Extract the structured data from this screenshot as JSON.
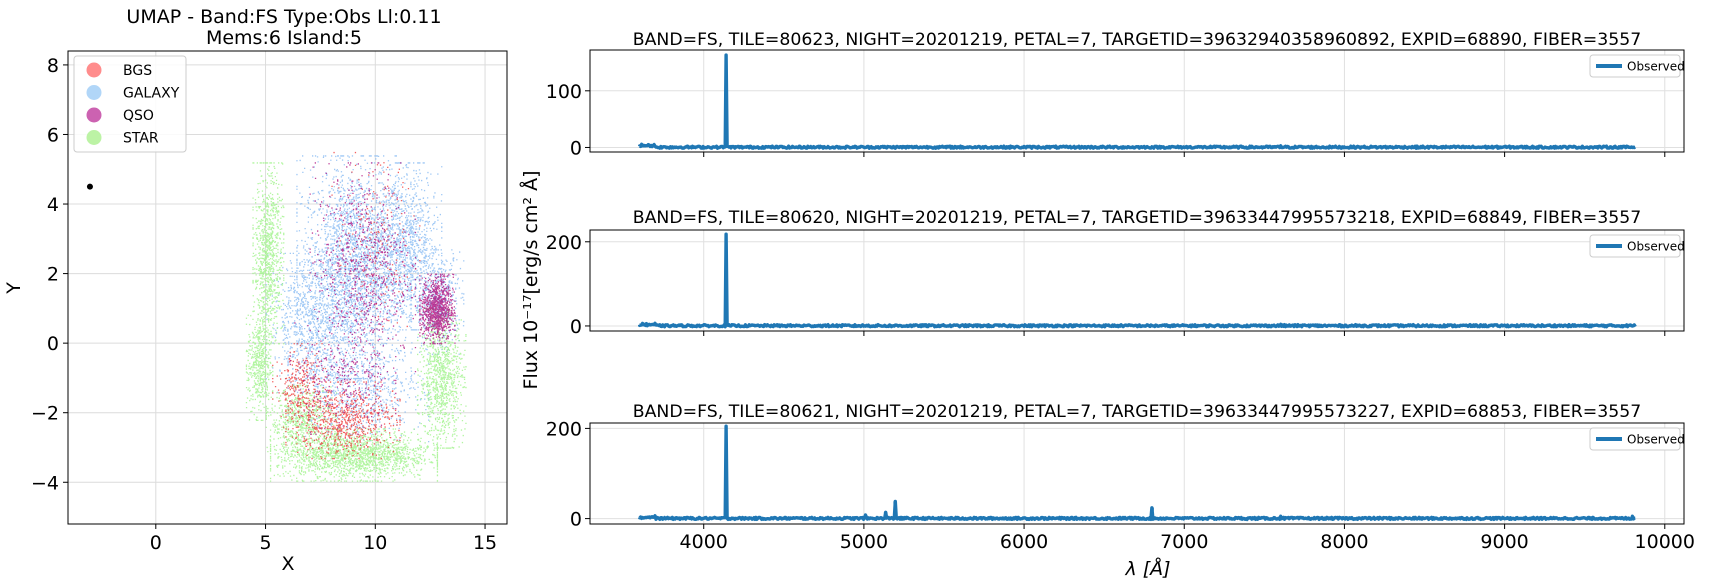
{
  "chart_data": [
    {
      "type": "scatter",
      "title": "UMAP  -  Band:FS Type:Obs Ll:0.11",
      "subtitle": "Mems:6 Island:5",
      "xlabel": "X",
      "ylabel": "Y",
      "xlim": [
        -4,
        16
      ],
      "ylim": [
        -5.2,
        8.4
      ],
      "xticks": [
        0,
        5,
        10,
        15
      ],
      "yticks": [
        -4,
        -2,
        0,
        2,
        4,
        6,
        8
      ],
      "grid": true,
      "legend_position": "top-left",
      "legend": [
        {
          "name": "BGS",
          "color": "#ff7f7f"
        },
        {
          "name": "GALAXY",
          "color": "#a8d1f7"
        },
        {
          "name": "QSO",
          "color": "#c751a8"
        },
        {
          "name": "STAR",
          "color": "#b5f29b"
        }
      ],
      "marker": {
        "x": -3,
        "y": 4.5,
        "color": "#000000"
      },
      "clusters": {
        "GALAXY": {
          "color": "#7fb6f2",
          "blobs": [
            {
              "cx": 9.0,
              "cy": 2.2,
              "rx": 2.6,
              "ry": 3.2,
              "n": 2600
            },
            {
              "cx": 11.4,
              "cy": 2.8,
              "rx": 1.6,
              "ry": 2.4,
              "n": 1000
            },
            {
              "cx": 7.0,
              "cy": 0.6,
              "rx": 2.0,
              "ry": 2.0,
              "n": 800
            },
            {
              "cx": 12.8,
              "cy": 1.2,
              "rx": 1.2,
              "ry": 1.5,
              "n": 500
            },
            {
              "cx": 9.2,
              "cy": -1.4,
              "rx": 3.2,
              "ry": 1.5,
              "n": 700
            }
          ]
        },
        "STAR": {
          "color": "#9ff28a",
          "blobs": [
            {
              "cx": 5.1,
              "cy": 2.6,
              "rx": 0.7,
              "ry": 2.6,
              "n": 900
            },
            {
              "cx": 4.7,
              "cy": -0.6,
              "rx": 0.6,
              "ry": 1.6,
              "n": 500
            },
            {
              "cx": 9.0,
              "cy": -3.2,
              "rx": 3.8,
              "ry": 0.75,
              "n": 1800
            },
            {
              "cx": 13.0,
              "cy": -1.0,
              "rx": 1.1,
              "ry": 2.0,
              "n": 900
            },
            {
              "cx": 6.6,
              "cy": -2.2,
              "rx": 1.6,
              "ry": 1.0,
              "n": 600
            }
          ]
        },
        "BGS": {
          "color": "#f03a3a",
          "blobs": [
            {
              "cx": 8.5,
              "cy": -2.2,
              "rx": 2.6,
              "ry": 1.1,
              "n": 700
            },
            {
              "cx": 6.5,
              "cy": -1.2,
              "rx": 1.2,
              "ry": 1.2,
              "n": 250
            },
            {
              "cx": 10.0,
              "cy": 3.0,
              "rx": 2.0,
              "ry": 2.5,
              "n": 150
            }
          ]
        },
        "QSO": {
          "color": "#b0127f",
          "blobs": [
            {
              "cx": 12.8,
              "cy": 1.0,
              "rx": 0.8,
              "ry": 1.0,
              "n": 900
            },
            {
              "cx": 9.4,
              "cy": 2.2,
              "rx": 2.4,
              "ry": 3.0,
              "n": 700
            },
            {
              "cx": 8.5,
              "cy": -1.0,
              "rx": 2.4,
              "ry": 1.6,
              "n": 250
            }
          ]
        }
      }
    },
    {
      "type": "line",
      "title": "BAND=FS, TILE=80623, NIGHT=20201219, PETAL=7, TARGETID=39632940358960892, EXPID=68890, FIBER=3557",
      "series": [
        {
          "name": "Observed",
          "color": "#1f77b4"
        }
      ],
      "xlim": [
        3290,
        10120
      ],
      "ylim": [
        -8,
        172
      ],
      "yticks": [
        0,
        100
      ],
      "baseline": 0.5,
      "spikes": [
        {
          "x": 4140,
          "y": 163
        },
        {
          "x": 7600,
          "y": 3
        },
        {
          "x": 3620,
          "y": 4
        }
      ]
    },
    {
      "type": "line",
      "title": "BAND=FS, TILE=80620, NIGHT=20201219, PETAL=7, TARGETID=39633447995573218, EXPID=68849, FIBER=3557",
      "series": [
        {
          "name": "Observed",
          "color": "#1f77b4"
        }
      ],
      "xlim": [
        3290,
        10120
      ],
      "ylim": [
        -12,
        228
      ],
      "yticks": [
        0,
        200
      ],
      "baseline": 0.5,
      "spikes": [
        {
          "x": 4140,
          "y": 218
        },
        {
          "x": 7600,
          "y": 4
        },
        {
          "x": 3620,
          "y": 6
        }
      ]
    },
    {
      "type": "line",
      "title": "BAND=FS, TILE=80621, NIGHT=20201219, PETAL=7, TARGETID=39633447995573227, EXPID=68853, FIBER=3557",
      "series": [
        {
          "name": "Observed",
          "color": "#1f77b4"
        }
      ],
      "xlim": [
        3290,
        10120
      ],
      "ylim": [
        -12,
        212
      ],
      "yticks": [
        0,
        200
      ],
      "xticks": [
        4000,
        5000,
        6000,
        7000,
        8000,
        9000,
        10000
      ],
      "xlabel": "λ [Å]",
      "baseline": 0.5,
      "spikes": [
        {
          "x": 4140,
          "y": 205
        },
        {
          "x": 5010,
          "y": 8
        },
        {
          "x": 5135,
          "y": 14
        },
        {
          "x": 5195,
          "y": 38
        },
        {
          "x": 6800,
          "y": 24
        },
        {
          "x": 7600,
          "y": 5
        },
        {
          "x": 9800,
          "y": 5
        }
      ]
    }
  ],
  "shared": {
    "spectra_ylabel": "Flux 10⁻¹⁷[erg/s cm² Å]"
  }
}
